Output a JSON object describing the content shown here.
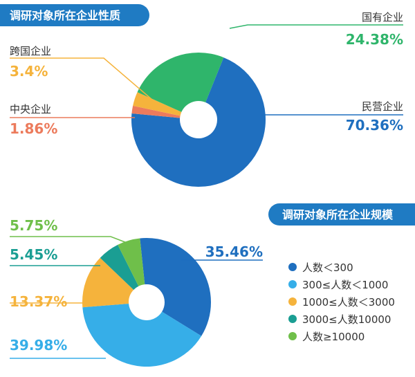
{
  "chart_data": [
    {
      "type": "pie",
      "title": "调研对象所在企业性质",
      "slices": [
        {
          "label": "民营企业",
          "value_text": "70.36%",
          "value": 70.36,
          "color": "#1f6fbf"
        },
        {
          "label": "国有企业",
          "value_text": "24.38%",
          "value": 24.38,
          "color": "#2fb56b"
        },
        {
          "label": "跨国企业",
          "value_text": "3.4%",
          "value": 3.4,
          "color": "#f5b33c"
        },
        {
          "label": "中央企业",
          "value_text": "1.86%",
          "value": 1.86,
          "color": "#ec7b5c"
        }
      ]
    },
    {
      "type": "pie",
      "title": "调研对象所在企业规模",
      "slices": [
        {
          "label": "人数＜300",
          "value_text": "35.46%",
          "value": 35.46,
          "color": "#1f6fbf"
        },
        {
          "label": "300≤人数＜1000",
          "value_text": "39.98%",
          "value": 39.98,
          "color": "#36aee8"
        },
        {
          "label": "1000≤人数＜3000",
          "value_text": "13.37%",
          "value": 13.37,
          "color": "#f5b33c"
        },
        {
          "label": "3000≤人数10000",
          "value_text": "5.45%",
          "value": 5.45,
          "color": "#1a9e93"
        },
        {
          "label": "人数≥10000",
          "value_text": "5.75%",
          "value": 5.75,
          "color": "#6fbf4a"
        }
      ]
    }
  ]
}
